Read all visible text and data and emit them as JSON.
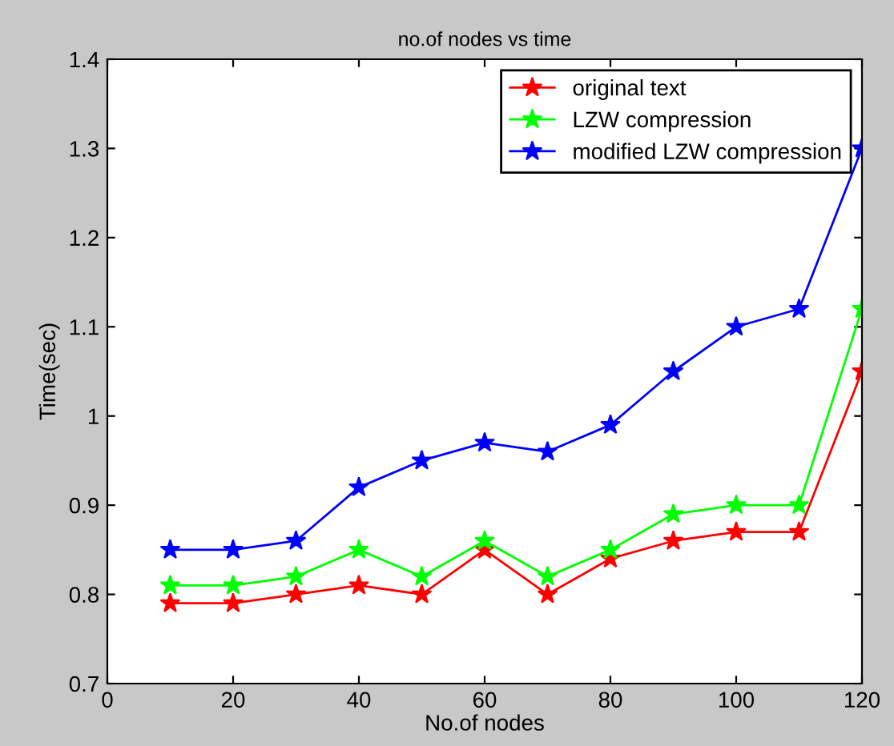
{
  "chart_data": {
    "type": "line",
    "title": "no.of nodes vs time",
    "xlabel": "No.of nodes",
    "ylabel": "Time(sec)",
    "x": [
      10,
      20,
      30,
      40,
      50,
      60,
      70,
      80,
      90,
      100,
      110,
      120
    ],
    "series": [
      {
        "name": "original text",
        "color": "#ff0000",
        "values": [
          0.79,
          0.79,
          0.8,
          0.81,
          0.8,
          0.85,
          0.8,
          0.84,
          0.86,
          0.87,
          0.87,
          1.05
        ]
      },
      {
        "name": "LZW compression",
        "color": "#00ff00",
        "values": [
          0.81,
          0.81,
          0.82,
          0.85,
          0.82,
          0.86,
          0.82,
          0.85,
          0.89,
          0.9,
          0.9,
          1.12
        ]
      },
      {
        "name": "modified LZW compression",
        "color": "#0000ff",
        "values": [
          0.85,
          0.85,
          0.86,
          0.92,
          0.95,
          0.97,
          0.96,
          0.99,
          1.05,
          1.1,
          1.12,
          1.3
        ]
      }
    ],
    "xlim": [
      0,
      120
    ],
    "xticks": [
      0,
      20,
      40,
      60,
      80,
      100,
      120
    ],
    "ylim": [
      0.7,
      1.4
    ],
    "yticks": [
      0.7,
      0.8,
      0.9,
      {
        "value": 1.0,
        "label": "1"
      },
      1.1,
      1.2,
      1.3,
      1.4
    ],
    "marker": "star",
    "line_style": "solid",
    "legend": "top right",
    "grid": false
  }
}
